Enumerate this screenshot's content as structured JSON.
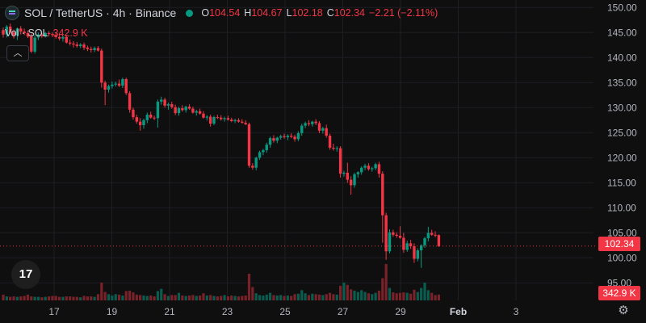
{
  "header": {
    "symbol": "SOL / TetherUS · 4h · Binance",
    "ohlc": [
      {
        "label": "O",
        "value": "104.54"
      },
      {
        "label": "H",
        "value": "104.67"
      },
      {
        "label": "L",
        "value": "102.18"
      },
      {
        "label": "C",
        "value": "102.34"
      },
      {
        "label": "",
        "value": "−2.21 (−2.11%)"
      }
    ]
  },
  "volume": {
    "label": "Vol · SOL",
    "value": "342.9 K"
  },
  "icons": {
    "collapse": "chevron-up-icon",
    "logo": "tradingview-logo",
    "settings": "gear-icon"
  },
  "colors": {
    "up": "#089981",
    "down": "#f23645",
    "bg": "#0f0f0f",
    "grid": "#1e1f24",
    "text": "#b2b5be"
  },
  "chart_data": {
    "type": "candlestick",
    "ylim": [
      91.5,
      151.5
    ],
    "yticks": [
      "150.00",
      "145.00",
      "140.00",
      "135.00",
      "130.00",
      "125.00",
      "120.00",
      "115.00",
      "110.00",
      "105.00",
      "100.00",
      "95.00"
    ],
    "xticks": [
      "17",
      "19",
      "21",
      "23",
      "25",
      "27",
      "29",
      "Feb",
      "3"
    ],
    "last_price": "102.34",
    "last_volume": "342.9 K",
    "grid": true,
    "candles": [
      [
        145.5,
        146.0,
        144.0,
        144.6
      ],
      [
        144.6,
        146.5,
        144.0,
        146.2
      ],
      [
        146.2,
        146.8,
        144.8,
        145.0
      ],
      [
        145.0,
        145.6,
        143.8,
        144.5
      ],
      [
        144.5,
        146.0,
        143.5,
        145.8
      ],
      [
        145.8,
        146.3,
        144.6,
        145.2
      ],
      [
        145.2,
        145.8,
        144.5,
        144.9
      ],
      [
        144.9,
        145.4,
        143.9,
        144.2
      ],
      [
        144.2,
        144.8,
        140.9,
        141.2
      ],
      [
        141.2,
        144.5,
        140.8,
        144.0
      ],
      [
        144.0,
        145.0,
        143.5,
        144.6
      ],
      [
        144.6,
        144.9,
        143.9,
        144.3
      ],
      [
        144.3,
        145.1,
        144.0,
        144.9
      ],
      [
        144.9,
        145.3,
        144.2,
        144.7
      ],
      [
        144.7,
        145.0,
        144.1,
        144.5
      ],
      [
        144.5,
        145.0,
        143.8,
        144.1
      ],
      [
        144.1,
        144.6,
        143.4,
        143.8
      ],
      [
        143.8,
        144.4,
        143.2,
        144.1
      ],
      [
        144.1,
        144.5,
        142.8,
        143.0
      ],
      [
        143.0,
        143.6,
        142.4,
        142.8
      ],
      [
        142.8,
        143.3,
        142.0,
        142.6
      ],
      [
        142.6,
        143.1,
        142.0,
        142.3
      ],
      [
        142.3,
        142.9,
        141.9,
        142.6
      ],
      [
        142.6,
        143.0,
        141.5,
        142.0
      ],
      [
        142.0,
        142.4,
        141.3,
        141.7
      ],
      [
        141.7,
        142.2,
        141.0,
        141.5
      ],
      [
        141.5,
        142.2,
        141.1,
        141.9
      ],
      [
        141.9,
        142.3,
        141.2,
        141.4
      ],
      [
        141.4,
        141.8,
        134.0,
        135.0
      ],
      [
        135.0,
        135.4,
        130.5,
        133.6
      ],
      [
        133.6,
        134.6,
        133.0,
        134.3
      ],
      [
        134.3,
        135.2,
        133.8,
        134.6
      ],
      [
        134.6,
        135.2,
        134.2,
        134.8
      ],
      [
        134.8,
        135.6,
        134.1,
        134.4
      ],
      [
        134.4,
        136.0,
        133.9,
        135.7
      ],
      [
        135.7,
        136.0,
        132.5,
        132.9
      ],
      [
        132.9,
        133.3,
        129.0,
        129.6
      ],
      [
        129.6,
        130.0,
        127.6,
        128.1
      ],
      [
        128.1,
        128.6,
        126.8,
        127.2
      ],
      [
        127.2,
        127.9,
        125.4,
        126.5
      ],
      [
        126.5,
        127.8,
        125.8,
        127.5
      ],
      [
        127.5,
        129.0,
        126.9,
        128.6
      ],
      [
        128.6,
        129.2,
        127.8,
        128.0
      ],
      [
        128.0,
        128.4,
        127.5,
        127.9
      ],
      [
        127.9,
        131.6,
        126.0,
        131.2
      ],
      [
        131.2,
        132.2,
        130.6,
        131.6
      ],
      [
        131.6,
        132.0,
        130.0,
        130.4
      ],
      [
        130.4,
        131.0,
        129.6,
        130.7
      ],
      [
        130.7,
        131.2,
        129.8,
        130.1
      ],
      [
        130.1,
        130.6,
        128.5,
        128.9
      ],
      [
        128.9,
        130.2,
        128.4,
        129.9
      ],
      [
        129.9,
        130.5,
        129.2,
        129.5
      ],
      [
        129.5,
        130.4,
        129.0,
        130.2
      ],
      [
        130.2,
        130.7,
        129.6,
        129.8
      ],
      [
        129.8,
        130.2,
        128.8,
        129.0
      ],
      [
        129.0,
        129.6,
        128.4,
        129.3
      ],
      [
        129.3,
        129.8,
        128.6,
        128.8
      ],
      [
        128.8,
        129.3,
        127.8,
        128.0
      ],
      [
        128.0,
        128.5,
        127.4,
        128.2
      ],
      [
        128.2,
        128.6,
        126.2,
        126.8
      ],
      [
        126.8,
        128.4,
        126.5,
        128.1
      ],
      [
        128.1,
        128.6,
        127.7,
        128.0
      ],
      [
        128.0,
        128.5,
        127.4,
        127.7
      ],
      [
        127.7,
        128.2,
        127.2,
        127.9
      ],
      [
        127.9,
        128.4,
        127.4,
        127.6
      ],
      [
        127.6,
        128.0,
        127.1,
        127.3
      ],
      [
        127.3,
        127.8,
        126.9,
        127.5
      ],
      [
        127.5,
        127.9,
        127.0,
        127.2
      ],
      [
        127.2,
        127.7,
        126.8,
        127.0
      ],
      [
        127.0,
        127.5,
        126.5,
        126.7
      ],
      [
        126.7,
        127.0,
        118.0,
        118.4
      ],
      [
        118.4,
        118.9,
        117.6,
        118.0
      ],
      [
        118.0,
        120.2,
        117.5,
        120.0
      ],
      [
        120.0,
        121.4,
        119.6,
        121.1
      ],
      [
        121.1,
        121.8,
        120.5,
        121.5
      ],
      [
        121.5,
        123.0,
        121.0,
        122.6
      ],
      [
        122.6,
        124.2,
        122.0,
        123.9
      ],
      [
        123.9,
        124.5,
        123.0,
        123.4
      ],
      [
        123.4,
        124.2,
        122.9,
        124.0
      ],
      [
        124.0,
        124.6,
        123.6,
        124.3
      ],
      [
        124.3,
        124.8,
        123.8,
        124.1
      ],
      [
        124.1,
        124.7,
        123.5,
        124.4
      ],
      [
        124.4,
        124.9,
        123.9,
        124.2
      ],
      [
        124.2,
        124.6,
        123.2,
        123.7
      ],
      [
        123.7,
        125.3,
        123.3,
        124.9
      ],
      [
        124.9,
        126.8,
        124.4,
        126.4
      ],
      [
        126.4,
        127.2,
        125.9,
        126.9
      ],
      [
        126.9,
        127.5,
        126.3,
        126.7
      ],
      [
        126.7,
        127.4,
        126.2,
        127.2
      ],
      [
        127.2,
        127.7,
        126.5,
        126.9
      ],
      [
        126.9,
        127.3,
        124.9,
        125.4
      ],
      [
        125.4,
        126.2,
        124.8,
        125.9
      ],
      [
        125.9,
        126.6,
        124.0,
        124.4
      ],
      [
        124.4,
        124.8,
        121.6,
        122.0
      ],
      [
        122.0,
        122.8,
        121.4,
        121.8
      ],
      [
        121.8,
        122.3,
        121.2,
        121.9
      ],
      [
        121.9,
        122.3,
        116.0,
        116.8
      ],
      [
        116.8,
        117.4,
        116.2,
        117.0
      ],
      [
        117.0,
        119.0,
        115.0,
        115.6
      ],
      [
        115.6,
        116.3,
        112.6,
        114.5
      ],
      [
        114.5,
        117.0,
        114.0,
        116.7
      ],
      [
        116.7,
        117.3,
        116.0,
        117.1
      ],
      [
        117.1,
        118.3,
        116.6,
        118.0
      ],
      [
        118.0,
        118.8,
        117.5,
        118.4
      ],
      [
        118.4,
        118.9,
        117.4,
        117.7
      ],
      [
        117.7,
        118.2,
        117.2,
        117.9
      ],
      [
        117.9,
        119.0,
        117.5,
        118.7
      ],
      [
        118.7,
        119.2,
        116.0,
        116.8
      ],
      [
        116.8,
        117.3,
        103.0,
        108.5
      ],
      [
        108.5,
        109.0,
        99.6,
        101.3
      ],
      [
        101.3,
        105.7,
        100.9,
        105.1
      ],
      [
        105.1,
        105.6,
        104.2,
        104.6
      ],
      [
        104.6,
        105.1,
        104.0,
        104.4
      ],
      [
        104.4,
        106.3,
        103.8,
        104.0
      ],
      [
        104.0,
        105.0,
        101.0,
        101.6
      ],
      [
        101.6,
        103.4,
        101.2,
        102.9
      ],
      [
        102.9,
        103.6,
        101.8,
        102.3
      ],
      [
        102.3,
        102.9,
        99.0,
        99.8
      ],
      [
        99.8,
        101.9,
        99.3,
        101.5
      ],
      [
        101.5,
        102.7,
        98.0,
        102.5
      ],
      [
        102.5,
        104.2,
        102.0,
        103.9
      ],
      [
        103.9,
        106.2,
        103.3,
        105.0
      ],
      [
        105.0,
        105.6,
        104.4,
        104.6
      ],
      [
        104.6,
        105.3,
        104.1,
        104.5
      ],
      [
        104.54,
        104.67,
        102.18,
        102.34
      ]
    ],
    "volumes": [
      13,
      9,
      8,
      9,
      8,
      9,
      10,
      13,
      9,
      8,
      8,
      7,
      8,
      9,
      10,
      10,
      8,
      8,
      9,
      9,
      8,
      8,
      7,
      10,
      9,
      9,
      8,
      14,
      40,
      19,
      14,
      11,
      14,
      13,
      11,
      21,
      22,
      18,
      13,
      12,
      11,
      10,
      11,
      9,
      21,
      26,
      14,
      10,
      12,
      12,
      17,
      11,
      10,
      11,
      12,
      10,
      11,
      16,
      11,
      12,
      10,
      9,
      10,
      12,
      9,
      11,
      10,
      9,
      10,
      11,
      60,
      30,
      16,
      12,
      11,
      13,
      17,
      12,
      11,
      12,
      10,
      11,
      10,
      14,
      15,
      23,
      16,
      12,
      15,
      14,
      13,
      12,
      14,
      17,
      14,
      13,
      33,
      40,
      35,
      25,
      22,
      19,
      23,
      19,
      16,
      14,
      17,
      22,
      50,
      82,
      28,
      18,
      16,
      17,
      18,
      17,
      15,
      24,
      19,
      28,
      40,
      23,
      17,
      12,
      13
    ]
  }
}
